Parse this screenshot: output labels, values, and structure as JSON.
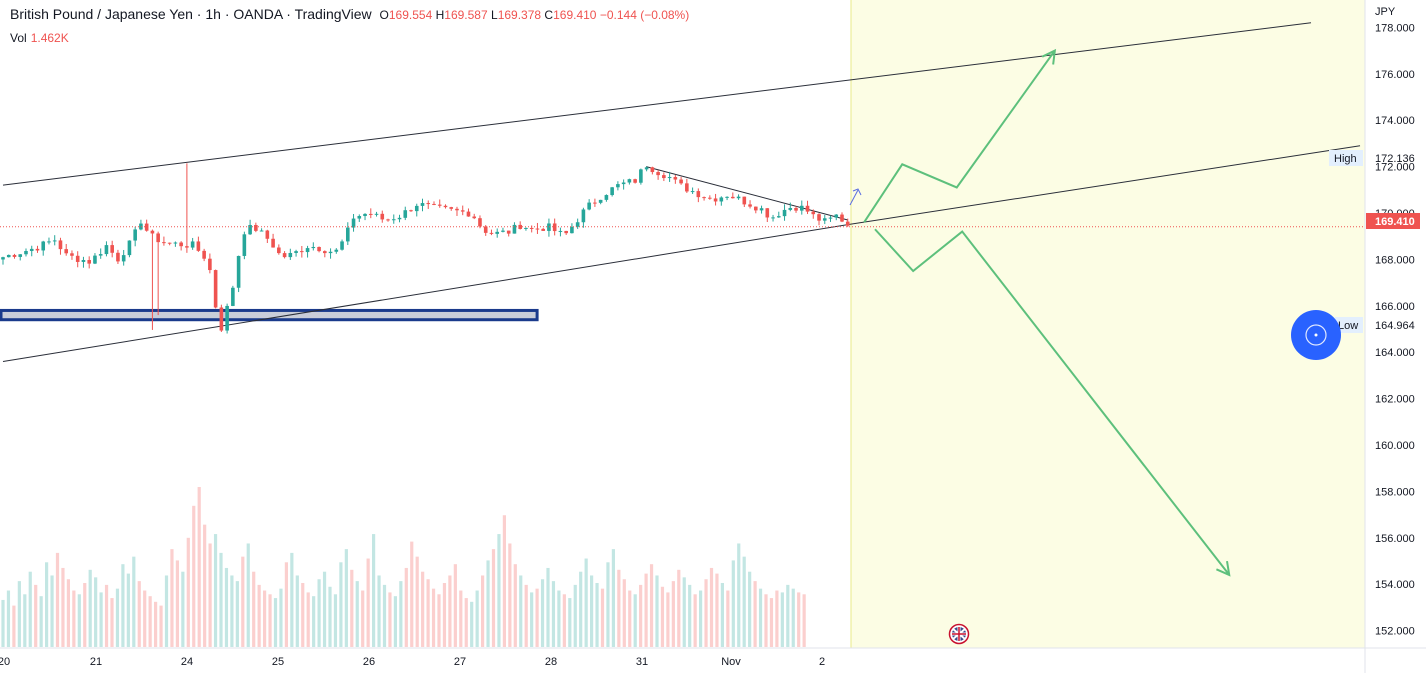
{
  "header": {
    "symbol_title": "British Pound / Japanese Yen · 1h · OANDA · TradingView",
    "ohlc": {
      "o_label": "O",
      "o": "169.554",
      "h_label": "H",
      "h": "169.587",
      "l_label": "L",
      "l": "169.378",
      "c_label": "C",
      "c": "169.410",
      "change": "−0.144 (−0.08%)"
    },
    "volume_label": "Vol",
    "volume_value": "1.462K"
  },
  "axis": {
    "currency": "JPY",
    "high_label": "High",
    "high_value": "172.136",
    "low_label": "Low",
    "low_value": "164.964",
    "last_price": "169.410"
  },
  "colors": {
    "up": "#26a69a",
    "down": "#ef5350",
    "forecast_zone": "#fcfde4",
    "forecast_border": "#e8ea8a",
    "arrow": "#5dc07c",
    "support_zone_border": "#1a3a8c",
    "support_zone_fill": "#c9cdd9",
    "trendline": "#2a2e39",
    "price_line": "#ef5350",
    "circle_button": "#2962ff"
  },
  "chart_data": {
    "type": "candlestick",
    "symbol": "GBPJPY",
    "interval": "1h",
    "ylim": [
      150.5,
      178.5
    ],
    "yticks": [
      152,
      154,
      156,
      158,
      160,
      162,
      164,
      166,
      168,
      170,
      172,
      174,
      176,
      178
    ],
    "x_ticks": [
      "20",
      "21",
      "24",
      "25",
      "26",
      "27",
      "28",
      "31",
      "Nov",
      "2"
    ],
    "price_path": [
      [
        0,
        168.1
      ],
      [
        6,
        168.5
      ],
      [
        10,
        168.9
      ],
      [
        11,
        168.2
      ],
      [
        16,
        167.9
      ],
      [
        19,
        168.6
      ],
      [
        21,
        168.0
      ],
      [
        24,
        168.9
      ],
      [
        25,
        169.8
      ],
      [
        27,
        169.0
      ],
      [
        30,
        168.7
      ],
      [
        35,
        168.6
      ],
      [
        37,
        168.1
      ],
      [
        38,
        167.5
      ],
      [
        39,
        166.0
      ],
      [
        40,
        165.0
      ],
      [
        41,
        165.8
      ],
      [
        42,
        166.6
      ],
      [
        44,
        169.2
      ],
      [
        46,
        169.4
      ],
      [
        49,
        168.8
      ],
      [
        51,
        168.1
      ],
      [
        53,
        168.2
      ],
      [
        56,
        168.6
      ],
      [
        58,
        168.5
      ],
      [
        61,
        168.3
      ],
      [
        63,
        169.0
      ],
      [
        64,
        169.8
      ],
      [
        67,
        170.0
      ],
      [
        70,
        169.7
      ],
      [
        73,
        169.9
      ],
      [
        76,
        170.4
      ],
      [
        79,
        170.2
      ],
      [
        82,
        170.1
      ],
      [
        86,
        170.0
      ],
      [
        88,
        169.3
      ],
      [
        90,
        169.1
      ],
      [
        93,
        169.2
      ],
      [
        95,
        169.5
      ],
      [
        97,
        169.3
      ],
      [
        100,
        169.4
      ],
      [
        103,
        169.0
      ],
      [
        105,
        169.6
      ],
      [
        107,
        170.2
      ],
      [
        110,
        170.8
      ],
      [
        113,
        171.2
      ],
      [
        116,
        171.4
      ],
      [
        118,
        172.1
      ],
      [
        120,
        171.8
      ],
      [
        122,
        171.6
      ],
      [
        124,
        171.2
      ],
      [
        127,
        170.9
      ],
      [
        130,
        170.6
      ],
      [
        133,
        170.8
      ],
      [
        136,
        170.5
      ],
      [
        139,
        170.2
      ],
      [
        141,
        169.8
      ],
      [
        143,
        170.1
      ],
      [
        145,
        170.3
      ],
      [
        147,
        170.2
      ],
      [
        149,
        169.8
      ],
      [
        151,
        169.6
      ],
      [
        153,
        169.9
      ],
      [
        155,
        169.5
      ]
    ],
    "volume": [
      25,
      30,
      22,
      35,
      28,
      40,
      33,
      27,
      45,
      38,
      50,
      42,
      36,
      30,
      28,
      34,
      41,
      37,
      29,
      33,
      26,
      31,
      44,
      39,
      48,
      35,
      30,
      27,
      24,
      22,
      38,
      52,
      46,
      40,
      58,
      75,
      85,
      65,
      55,
      60,
      50,
      42,
      38,
      35,
      48,
      55,
      40,
      33,
      30,
      28,
      26,
      31,
      45,
      50,
      38,
      34,
      29,
      27,
      36,
      40,
      32,
      28,
      45,
      52,
      41,
      35,
      30,
      47,
      60,
      38,
      33,
      29,
      27,
      35,
      42,
      56,
      48,
      40,
      36,
      31,
      28,
      34,
      38,
      44,
      30,
      26,
      24,
      30,
      38,
      46,
      52,
      60,
      70,
      55,
      44,
      38,
      33,
      29,
      31,
      36,
      42,
      35,
      30,
      28,
      26,
      33,
      40,
      47,
      38,
      34,
      31,
      45,
      52,
      41,
      36,
      30,
      28,
      33,
      39,
      44,
      38,
      32,
      29,
      35,
      41,
      37,
      33,
      28,
      30,
      36,
      42,
      39,
      34,
      30,
      46,
      55,
      48,
      40,
      35,
      31,
      28,
      26,
      30,
      29,
      33,
      31,
      29,
      28
    ],
    "trendlines": [
      {
        "name": "channel-upper",
        "p1": [
          0,
          171.2
        ],
        "p2": [
          240,
          178.2
        ]
      },
      {
        "name": "channel-lower",
        "p1": [
          0,
          163.6
        ],
        "p2": [
          155,
          169.5
        ]
      },
      {
        "name": "mid-line",
        "p1": [
          155,
          169.5
        ],
        "p2": [
          249,
          172.9
        ]
      },
      {
        "name": "falling-resistance",
        "p1": [
          118,
          172.0
        ],
        "p2": [
          155,
          169.7
        ]
      }
    ],
    "support_zone": {
      "from": 0,
      "to": 98,
      "low": 165.4,
      "high": 165.8
    },
    "forecast_zone_start": 155,
    "projection_bullish": [
      [
        158,
        169.6
      ],
      [
        165,
        172.1
      ],
      [
        175,
        171.1
      ],
      [
        193,
        177.0
      ]
    ],
    "projection_bearish": [
      [
        160,
        169.3
      ],
      [
        167,
        167.5
      ],
      [
        176,
        169.2
      ],
      [
        225,
        154.4
      ]
    ],
    "last_price": 169.41,
    "high": 172.136,
    "low": 164.964
  }
}
